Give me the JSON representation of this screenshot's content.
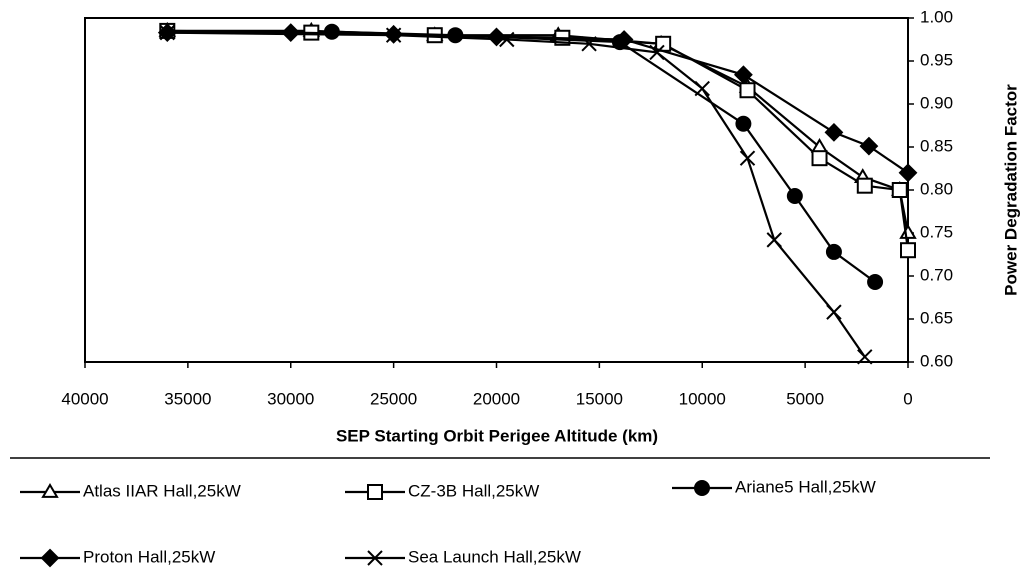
{
  "chart_data": {
    "type": "line",
    "xlabel": "SEP Starting Orbit Perigee Altitude (km)",
    "ylabel": "Power Degradation Factor",
    "xlim": [
      40000,
      0
    ],
    "xticks": [
      40000,
      35000,
      30000,
      25000,
      20000,
      15000,
      10000,
      5000,
      0
    ],
    "ylim": [
      0.6,
      1.0
    ],
    "yticks": [
      {
        "value": 0.6,
        "label": "0.60"
      },
      {
        "value": 0.65,
        "label": "0.65"
      },
      {
        "value": 0.7,
        "label": "0.70"
      },
      {
        "value": 0.75,
        "label": "0.75"
      },
      {
        "value": 0.8,
        "label": "0.80"
      },
      {
        "value": 0.85,
        "label": "0.85"
      },
      {
        "value": 0.9,
        "label": "0.90"
      },
      {
        "value": 0.95,
        "label": "0.95"
      },
      {
        "value": 1.0,
        "label": "1.00"
      }
    ],
    "series": [
      {
        "name": "Atlas IIAR Hall,25kW",
        "color": "#000000",
        "marker": "triangle",
        "x": [
          36000,
          29000,
          23000,
          17000,
          12000,
          7800,
          4300,
          2200,
          400,
          0
        ],
        "values": [
          0.985,
          0.985,
          0.98,
          0.98,
          0.97,
          0.92,
          0.85,
          0.815,
          0.8,
          0.75
        ]
      },
      {
        "name": "CZ-3B Hall,25kW",
        "color": "#000000",
        "marker": "square",
        "x": [
          36000,
          29000,
          23000,
          16800,
          11900,
          7800,
          4300,
          2100,
          400,
          0
        ],
        "values": [
          0.985,
          0.983,
          0.98,
          0.977,
          0.97,
          0.916,
          0.837,
          0.805,
          0.8,
          0.73
        ]
      },
      {
        "name": "Ariane5 Hall,25kW",
        "color": "#000000",
        "marker": "circle",
        "x": [
          28000,
          22000,
          14000,
          8000,
          5500,
          3600,
          1600
        ],
        "values": [
          0.984,
          0.98,
          0.972,
          0.877,
          0.793,
          0.728,
          0.693
        ]
      },
      {
        "name": "Proton Hall,25kW",
        "color": "#000000",
        "marker": "diamond",
        "x": [
          36000,
          30000,
          25000,
          20000,
          13800,
          8000,
          3600,
          1900,
          0
        ],
        "values": [
          0.983,
          0.983,
          0.981,
          0.978,
          0.975,
          0.934,
          0.867,
          0.851,
          0.82
        ]
      },
      {
        "name": "Sea Launch Hall,25kW",
        "color": "#000000",
        "marker": "x",
        "x": [
          36000,
          25000,
          19500,
          15500,
          12200,
          10000,
          7800,
          6500,
          3600,
          2100
        ],
        "values": [
          0.983,
          0.98,
          0.975,
          0.97,
          0.96,
          0.918,
          0.837,
          0.742,
          0.658,
          0.606
        ]
      }
    ]
  }
}
